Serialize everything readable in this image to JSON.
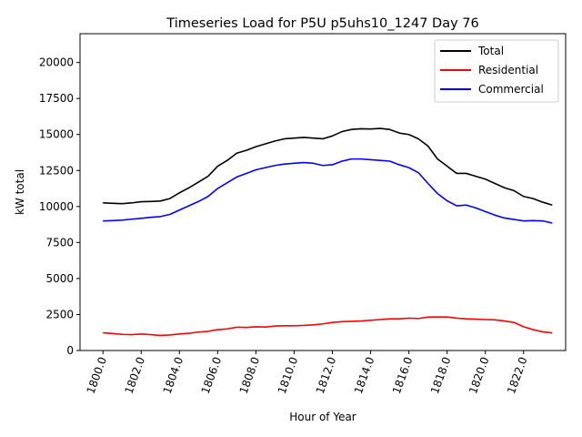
{
  "chart_data": {
    "type": "line",
    "title": "Timeseries Load for P5U p5uhs10_1247  Day 76",
    "xlabel": "Hour of Year",
    "ylabel": "kW total",
    "xlim": [
      1798.8,
      1824.2
    ],
    "ylim": [
      0,
      22000
    ],
    "xticks": [
      1800,
      1802,
      1804,
      1806,
      1808,
      1810,
      1812,
      1814,
      1816,
      1818,
      1820,
      1822
    ],
    "xtick_labels": [
      "1800.0",
      "1802.0",
      "1804.0",
      "1806.0",
      "1808.0",
      "1810.0",
      "1812.0",
      "1814.0",
      "1816.0",
      "1818.0",
      "1820.0",
      "1822.0"
    ],
    "yticks": [
      0,
      2500,
      5000,
      7500,
      10000,
      12500,
      15000,
      17500,
      20000
    ],
    "ytick_labels": [
      "0",
      "2500",
      "5000",
      "7500",
      "10000",
      "12500",
      "15000",
      "17500",
      "20000"
    ],
    "legend_position": "top-right",
    "x": [
      1800.0,
      1800.5,
      1801.0,
      1801.5,
      1802.0,
      1802.5,
      1803.0,
      1803.5,
      1804.0,
      1804.5,
      1805.0,
      1805.5,
      1806.0,
      1806.5,
      1807.0,
      1807.5,
      1808.0,
      1808.5,
      1809.0,
      1809.5,
      1810.0,
      1810.5,
      1811.0,
      1811.5,
      1812.0,
      1812.5,
      1813.0,
      1813.5,
      1814.0,
      1814.5,
      1815.0,
      1815.5,
      1816.0,
      1816.5,
      1817.0,
      1817.5,
      1818.0,
      1818.5,
      1819.0,
      1819.5,
      1820.0,
      1820.5,
      1821.0,
      1821.5,
      1822.0,
      1822.5,
      1823.0,
      1823.5
    ],
    "series": [
      {
        "name": "Total",
        "color": "#000000",
        "values": [
          10250,
          10220,
          10200,
          10250,
          10330,
          10350,
          10380,
          10550,
          10950,
          11300,
          11700,
          12100,
          12800,
          13200,
          13700,
          13900,
          14150,
          14350,
          14550,
          14700,
          14750,
          14800,
          14750,
          14700,
          14900,
          15200,
          15350,
          15400,
          15380,
          15420,
          15350,
          15100,
          15000,
          14700,
          14200,
          13300,
          12800,
          12300,
          12300,
          12100,
          11900,
          11600,
          11300,
          11100,
          10700,
          10550,
          10300,
          10100
        ]
      },
      {
        "name": "Residential",
        "color": "#ff0000",
        "values": [
          1230,
          1180,
          1120,
          1100,
          1140,
          1100,
          1050,
          1080,
          1150,
          1200,
          1280,
          1330,
          1450,
          1500,
          1620,
          1600,
          1650,
          1630,
          1700,
          1720,
          1720,
          1740,
          1780,
          1850,
          1950,
          2000,
          2030,
          2050,
          2100,
          2150,
          2200,
          2200,
          2250,
          2220,
          2320,
          2330,
          2330,
          2250,
          2200,
          2180,
          2150,
          2130,
          2050,
          1950,
          1650,
          1450,
          1300,
          1220
        ]
      },
      {
        "name": "Commercial",
        "color": "#0000ff",
        "values": [
          9000,
          9020,
          9050,
          9120,
          9180,
          9250,
          9300,
          9450,
          9750,
          10050,
          10350,
          10700,
          11250,
          11650,
          12050,
          12300,
          12550,
          12700,
          12850,
          12950,
          13000,
          13050,
          13000,
          12850,
          12900,
          13150,
          13300,
          13300,
          13250,
          13200,
          13150,
          12900,
          12700,
          12350,
          11600,
          10900,
          10400,
          10050,
          10100,
          9900,
          9650,
          9400,
          9200,
          9100,
          9000,
          9020,
          9000,
          8850
        ]
      }
    ]
  }
}
